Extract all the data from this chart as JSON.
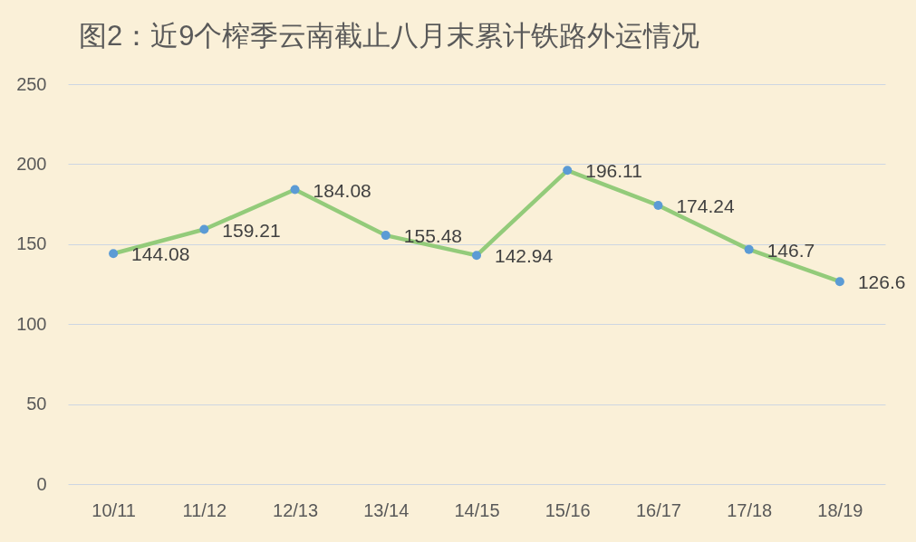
{
  "chart_data": {
    "type": "line",
    "title": "图2：近9个榨季云南截止八月末累计铁路外运情况",
    "categories": [
      "10/11",
      "11/12",
      "12/13",
      "13/14",
      "14/15",
      "15/16",
      "16/17",
      "17/18",
      "18/19"
    ],
    "series": [
      {
        "color": "#93cb7a",
        "values": [
          144.08,
          159.21,
          184.08,
          155.48,
          142.94,
          196.11,
          174.24,
          146.7,
          126.6
        ]
      },
      {
        "type": "scatter",
        "color": "#5b9bd5",
        "marker": "circle",
        "values": [
          144.08,
          159.21,
          184.08,
          155.48,
          142.94,
          196.11,
          174.24,
          146.7,
          126.6
        ],
        "value_labels": [
          "144.08",
          "159.21",
          "184.08",
          "155.48",
          "142.94",
          "196.11",
          "174.24",
          "146.7",
          "126.6"
        ]
      }
    ],
    "ylim": [
      0,
      250
    ],
    "yticks": [
      0,
      50,
      100,
      150,
      200,
      250
    ],
    "grid": "y",
    "line_style": "solid"
  }
}
